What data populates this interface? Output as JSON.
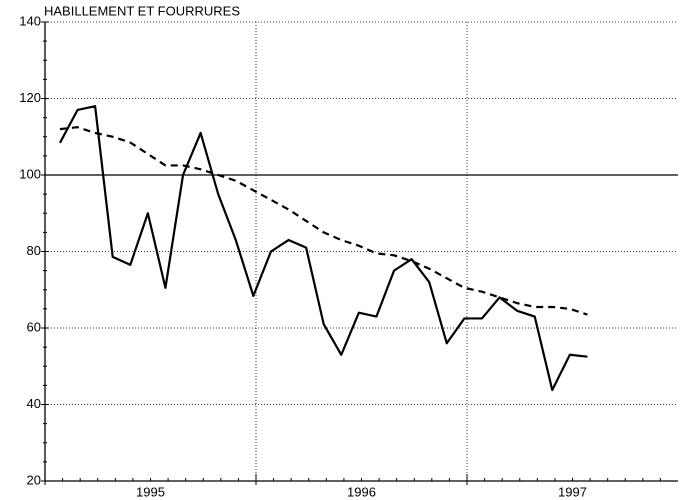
{
  "chart_data": {
    "type": "line",
    "title": "HABILLEMENT ET FOURRURES",
    "categories": [
      null,
      null,
      null,
      null,
      null,
      null,
      null,
      null,
      null,
      null,
      null,
      null,
      null,
      null,
      null,
      null,
      null,
      null,
      null,
      null,
      null,
      null,
      null,
      null,
      null,
      null,
      null,
      null,
      null,
      null,
      null
    ],
    "year_labels": [
      "1995",
      "1996",
      "1997"
    ],
    "months_per_year": 12,
    "series": [
      {
        "color": "#000",
        "style": "solid",
        "values": [
          108.4,
          117,
          118,
          78.6,
          76.5,
          90,
          70.5,
          100,
          111,
          95,
          83,
          68.4,
          80,
          83,
          81,
          61,
          53,
          64,
          63,
          75,
          78,
          72,
          56,
          62.5,
          62.5,
          68,
          64.5,
          63,
          43.8,
          53,
          52.5
        ]
      },
      {
        "color": "#000",
        "style": "dashed",
        "values": [
          112,
          112.5,
          111,
          110,
          108.5,
          105.5,
          102.5,
          102.5,
          101.5,
          100,
          98.5,
          96,
          93.5,
          91,
          88,
          85,
          83,
          81.5,
          79.5,
          79,
          77.5,
          75.5,
          73,
          70.5,
          69.5,
          68,
          66.5,
          65.5,
          65.5,
          65,
          63.5
        ]
      }
    ],
    "reference_line": 100,
    "ylim": [
      20,
      140
    ],
    "yticks": [
      20,
      40,
      60,
      80,
      100,
      120,
      140
    ],
    "grid": true
  }
}
